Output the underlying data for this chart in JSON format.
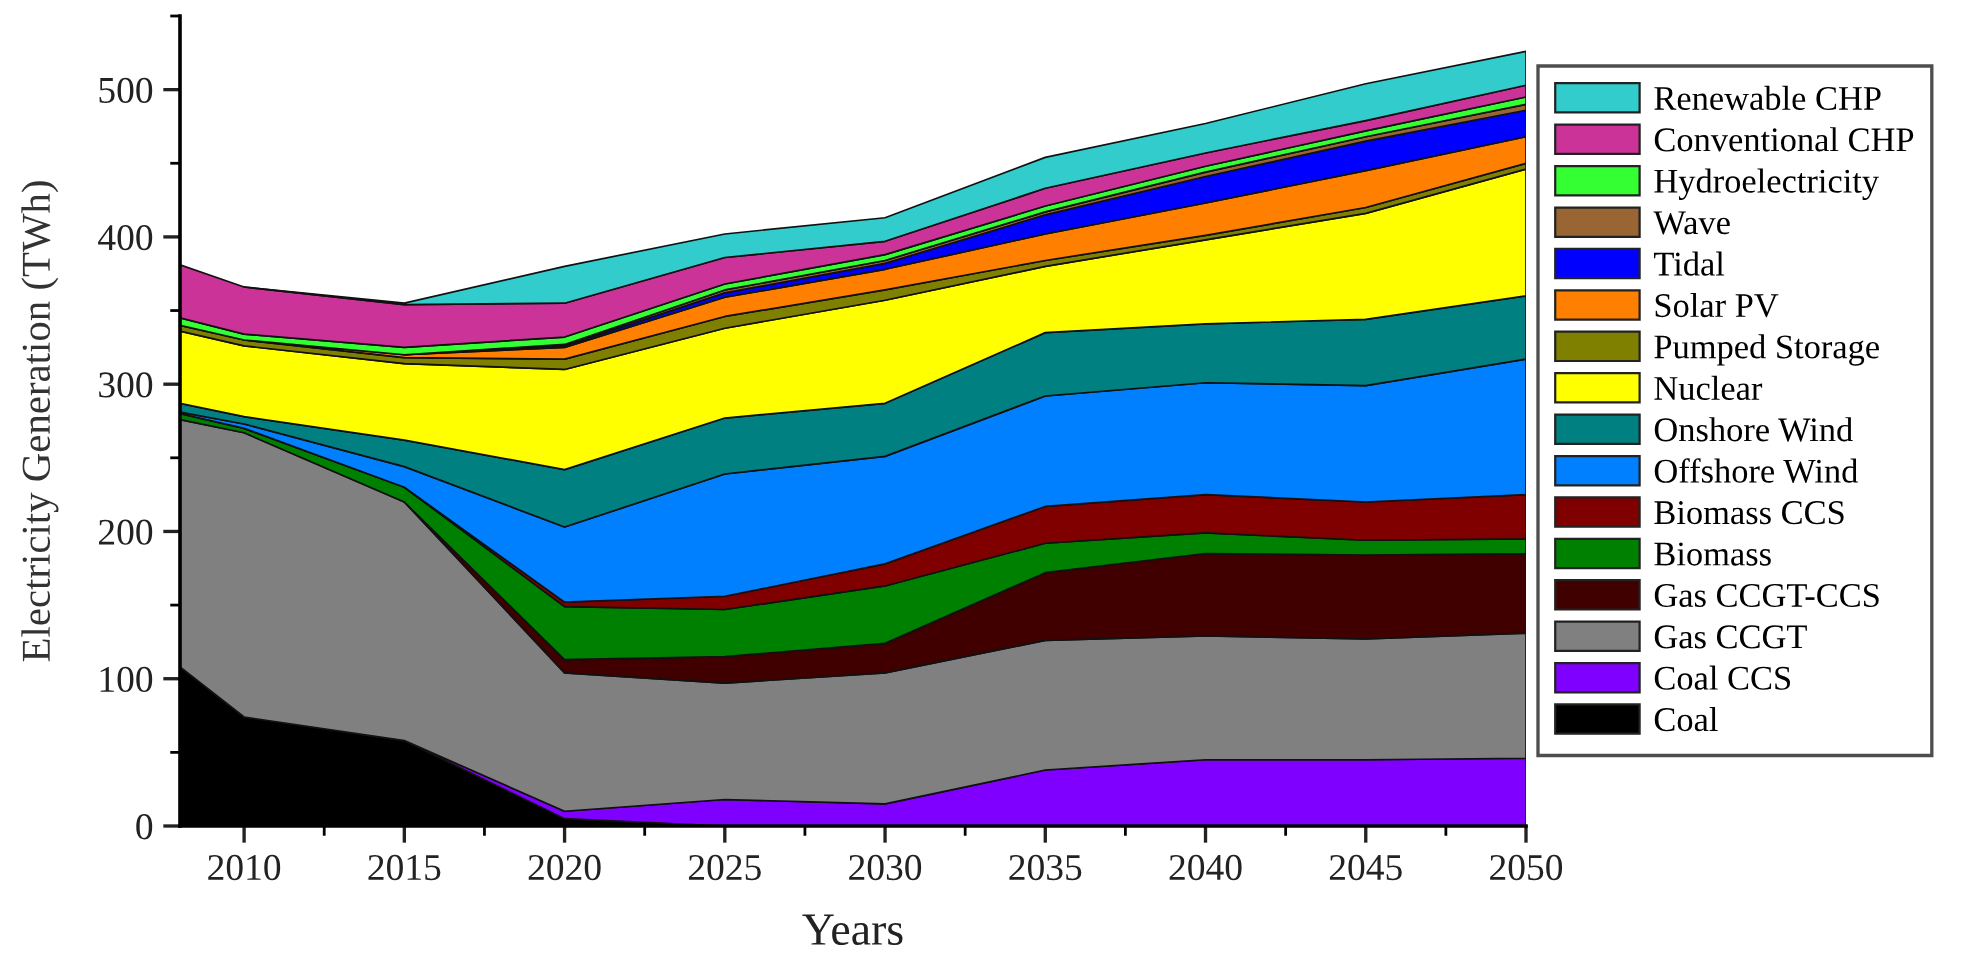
{
  "chart_data": {
    "type": "area",
    "stacked": true,
    "xlabel": "Years",
    "ylabel": "Electricity Generation (TWh)",
    "x": [
      2008,
      2010,
      2015,
      2020,
      2025,
      2030,
      2035,
      2040,
      2045,
      2050
    ],
    "xlim": [
      2008,
      2050
    ],
    "xticks": [
      2010,
      {
        "value": 2012.5,
        "label": null
      },
      2015,
      {
        "value": 2017.5,
        "label": null
      },
      2020,
      {
        "value": 2022.5,
        "label": null
      },
      2025,
      {
        "value": 2027.5,
        "label": null
      },
      2030,
      {
        "value": 2032.5,
        "label": null
      },
      2035,
      {
        "value": 2037.5,
        "label": null
      },
      2040,
      {
        "value": 2042.5,
        "label": null
      },
      2045,
      {
        "value": 2047.5,
        "label": null
      },
      2050
    ],
    "ylim": [
      0,
      550
    ],
    "yticks": [
      0,
      {
        "value": 50,
        "label": null
      },
      100,
      {
        "value": 150,
        "label": null
      },
      200,
      {
        "value": 250,
        "label": null
      },
      300,
      {
        "value": 350,
        "label": null
      },
      400,
      {
        "value": 450,
        "label": null
      },
      500,
      {
        "value": 550,
        "label": null
      }
    ],
    "legend": "right",
    "series": [
      {
        "name": "Coal",
        "color": "#000000",
        "values": [
          108,
          74,
          58,
          5,
          0,
          null,
          null,
          null,
          null,
          null
        ]
      },
      {
        "name": "Coal CCS",
        "color": "#8000ff",
        "values": [
          null,
          null,
          0,
          5,
          18,
          15,
          38,
          45,
          45,
          46
        ]
      },
      {
        "name": "Gas CCGT",
        "color": "#808080",
        "values": [
          168,
          193,
          162,
          94,
          79,
          89,
          88,
          84,
          82,
          85
        ]
      },
      {
        "name": "Gas CCGT-CCS",
        "color": "#400000",
        "values": [
          null,
          null,
          0,
          9,
          18,
          20,
          46,
          56,
          57,
          54
        ]
      },
      {
        "name": "Biomass",
        "color": "#008000",
        "values": [
          4,
          3,
          10,
          36,
          32,
          39,
          20,
          14,
          10,
          10
        ]
      },
      {
        "name": "Biomass CCS",
        "color": "#800000",
        "values": [
          null,
          null,
          0,
          3,
          9,
          15,
          25,
          26,
          26,
          30
        ]
      },
      {
        "name": "Offshore Wind",
        "color": "#0080ff",
        "values": [
          1,
          3,
          14,
          51,
          83,
          73,
          75,
          76,
          79,
          92
        ]
      },
      {
        "name": "Onshore Wind",
        "color": "#008080",
        "values": [
          6,
          5,
          18,
          39,
          38,
          36,
          43,
          40,
          45,
          43
        ]
      },
      {
        "name": "Nuclear",
        "color": "#ffff00",
        "values": [
          49,
          48,
          52,
          68,
          61,
          70,
          45,
          57,
          72,
          86
        ]
      },
      {
        "name": "Pumped Storage",
        "color": "#808000",
        "values": [
          4,
          4,
          4,
          7,
          8,
          7,
          4,
          3,
          4,
          4
        ]
      },
      {
        "name": "Solar PV",
        "color": "#ff8000",
        "values": [
          null,
          0,
          2,
          8,
          13,
          14,
          18,
          22,
          25,
          18
        ]
      },
      {
        "name": "Tidal",
        "color": "#0000ff",
        "values": [
          null,
          null,
          0,
          1,
          3,
          4,
          13,
          18,
          20,
          18
        ]
      },
      {
        "name": "Wave",
        "color": "#996633",
        "values": [
          null,
          null,
          0,
          1,
          2,
          2,
          2,
          3,
          3,
          4
        ]
      },
      {
        "name": "Hydroelectricity",
        "color": "#33ff33",
        "values": [
          5,
          4,
          5,
          5,
          4,
          4,
          4,
          4,
          4,
          5
        ]
      },
      {
        "name": "Conventional CHP",
        "color": "#cc3399",
        "values": [
          36,
          32,
          29,
          23,
          18,
          9,
          12,
          9,
          7,
          8
        ]
      },
      {
        "name": "Renewable CHP",
        "color": "#33cccc",
        "values": [
          null,
          0,
          1,
          25,
          16,
          16,
          21,
          20,
          25,
          23
        ]
      }
    ]
  }
}
